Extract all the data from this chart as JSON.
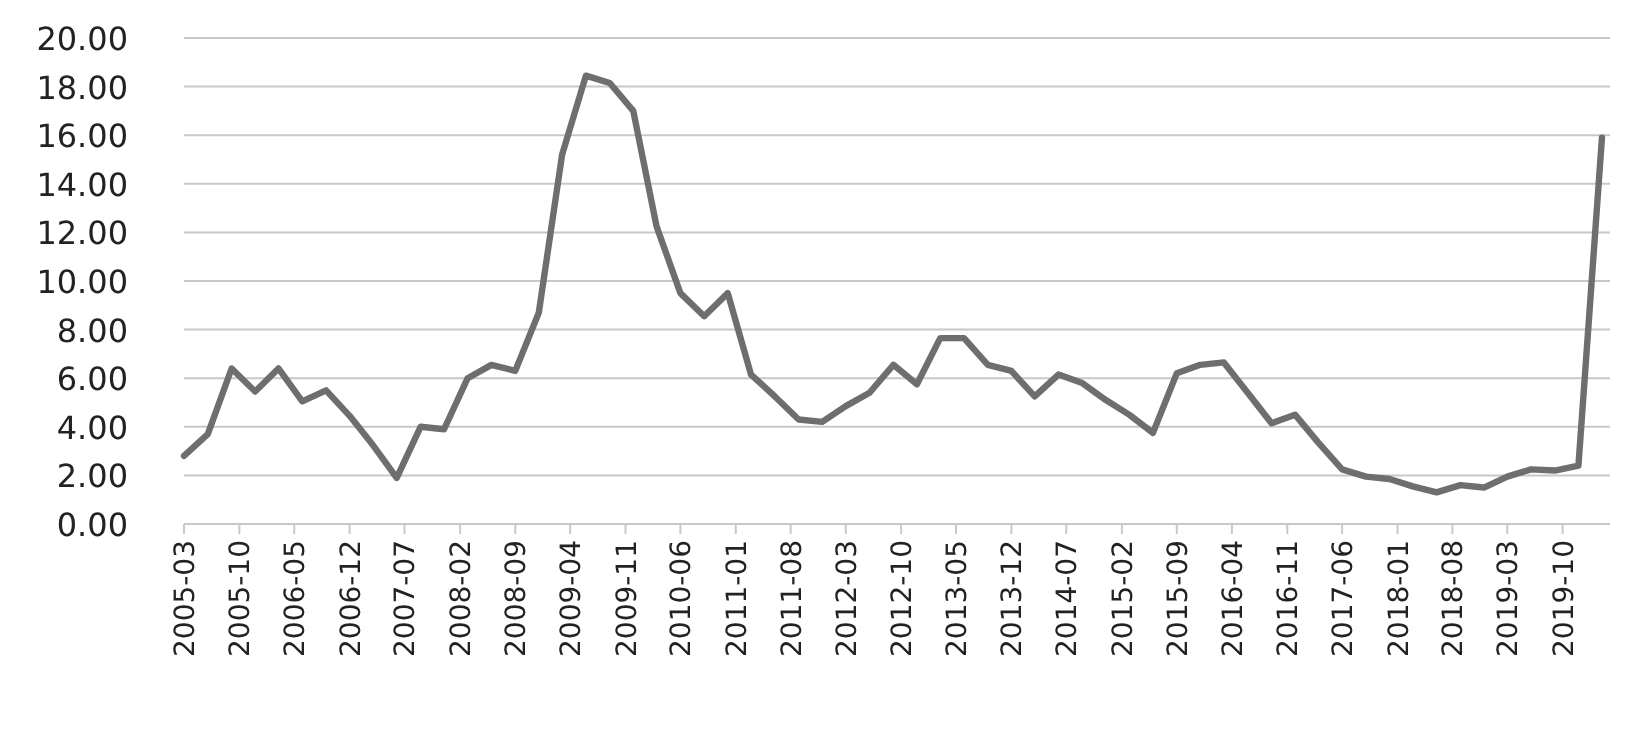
{
  "chart_data": {
    "type": "line",
    "x": [
      "2005-03",
      "2005-06",
      "2005-09",
      "2005-12",
      "2006-03",
      "2006-06",
      "2006-09",
      "2006-12",
      "2007-03",
      "2007-06",
      "2007-09",
      "2007-12",
      "2008-03",
      "2008-06",
      "2008-09",
      "2008-12",
      "2009-03",
      "2009-06",
      "2009-09",
      "2009-12",
      "2010-03",
      "2010-06",
      "2010-09",
      "2010-12",
      "2011-03",
      "2011-06",
      "2011-09",
      "2011-12",
      "2012-03",
      "2012-06",
      "2012-09",
      "2012-12",
      "2013-03",
      "2013-06",
      "2013-09",
      "2013-12",
      "2014-03",
      "2014-06",
      "2014-09",
      "2014-12",
      "2015-03",
      "2015-06",
      "2015-09",
      "2015-12",
      "2016-03",
      "2016-06",
      "2016-09",
      "2016-12",
      "2017-03",
      "2017-06",
      "2017-09",
      "2017-12",
      "2018-03",
      "2018-06",
      "2018-09",
      "2018-12",
      "2019-03",
      "2019-06",
      "2019-09",
      "2019-12",
      "2020-03"
    ],
    "series": [
      {
        "color": "#6e6e6e",
        "values": [
          2.8,
          3.7,
          6.4,
          5.45,
          6.4,
          5.05,
          5.5,
          4.45,
          3.25,
          1.9,
          4.0,
          3.9,
          6.0,
          6.55,
          6.3,
          8.7,
          15.2,
          18.45,
          18.15,
          17.0,
          12.25,
          9.5,
          8.55,
          9.5,
          6.15,
          5.25,
          4.3,
          4.2,
          4.85,
          5.4,
          6.55,
          5.75,
          7.65,
          7.65,
          6.55,
          6.3,
          5.25,
          6.15,
          5.8,
          5.1,
          4.5,
          3.75,
          6.2,
          6.55,
          6.65,
          5.4,
          4.15,
          4.5,
          3.35,
          2.25,
          1.95,
          1.85,
          1.55,
          1.3,
          1.6,
          1.5,
          1.95,
          2.25,
          2.2,
          2.4,
          15.9
        ]
      }
    ],
    "xlim": [
      "2005-03",
      "2020-04"
    ],
    "xticks": [
      "2005-03",
      "2005-10",
      "2006-05",
      "2006-12",
      "2007-07",
      "2008-02",
      "2008-09",
      "2009-04",
      "2009-11",
      "2010-06",
      "2011-01",
      "2011-08",
      "2012-03",
      "2012-10",
      "2013-05",
      "2013-12",
      "2014-07",
      "2015-02",
      "2015-09",
      "2016-04",
      "2016-11",
      "2017-06",
      "2018-01",
      "2018-08",
      "2019-03",
      "2019-10"
    ],
    "ylim": [
      0,
      20
    ],
    "yticks": [
      {
        "value": 0,
        "label": "0.00"
      },
      {
        "value": 2,
        "label": "2.00"
      },
      {
        "value": 4,
        "label": "4.00"
      },
      {
        "value": 6,
        "label": "6.00"
      },
      {
        "value": 8,
        "label": "8.00"
      },
      {
        "value": 10,
        "label": "10.00"
      },
      {
        "value": 12,
        "label": "12.00"
      },
      {
        "value": 14,
        "label": "14.00"
      },
      {
        "value": 16,
        "label": "16.00"
      },
      {
        "value": 18,
        "label": "18.00"
      },
      {
        "value": 20,
        "label": "20.00"
      }
    ],
    "grid": "y",
    "marker": "none",
    "line_style": "solid"
  }
}
